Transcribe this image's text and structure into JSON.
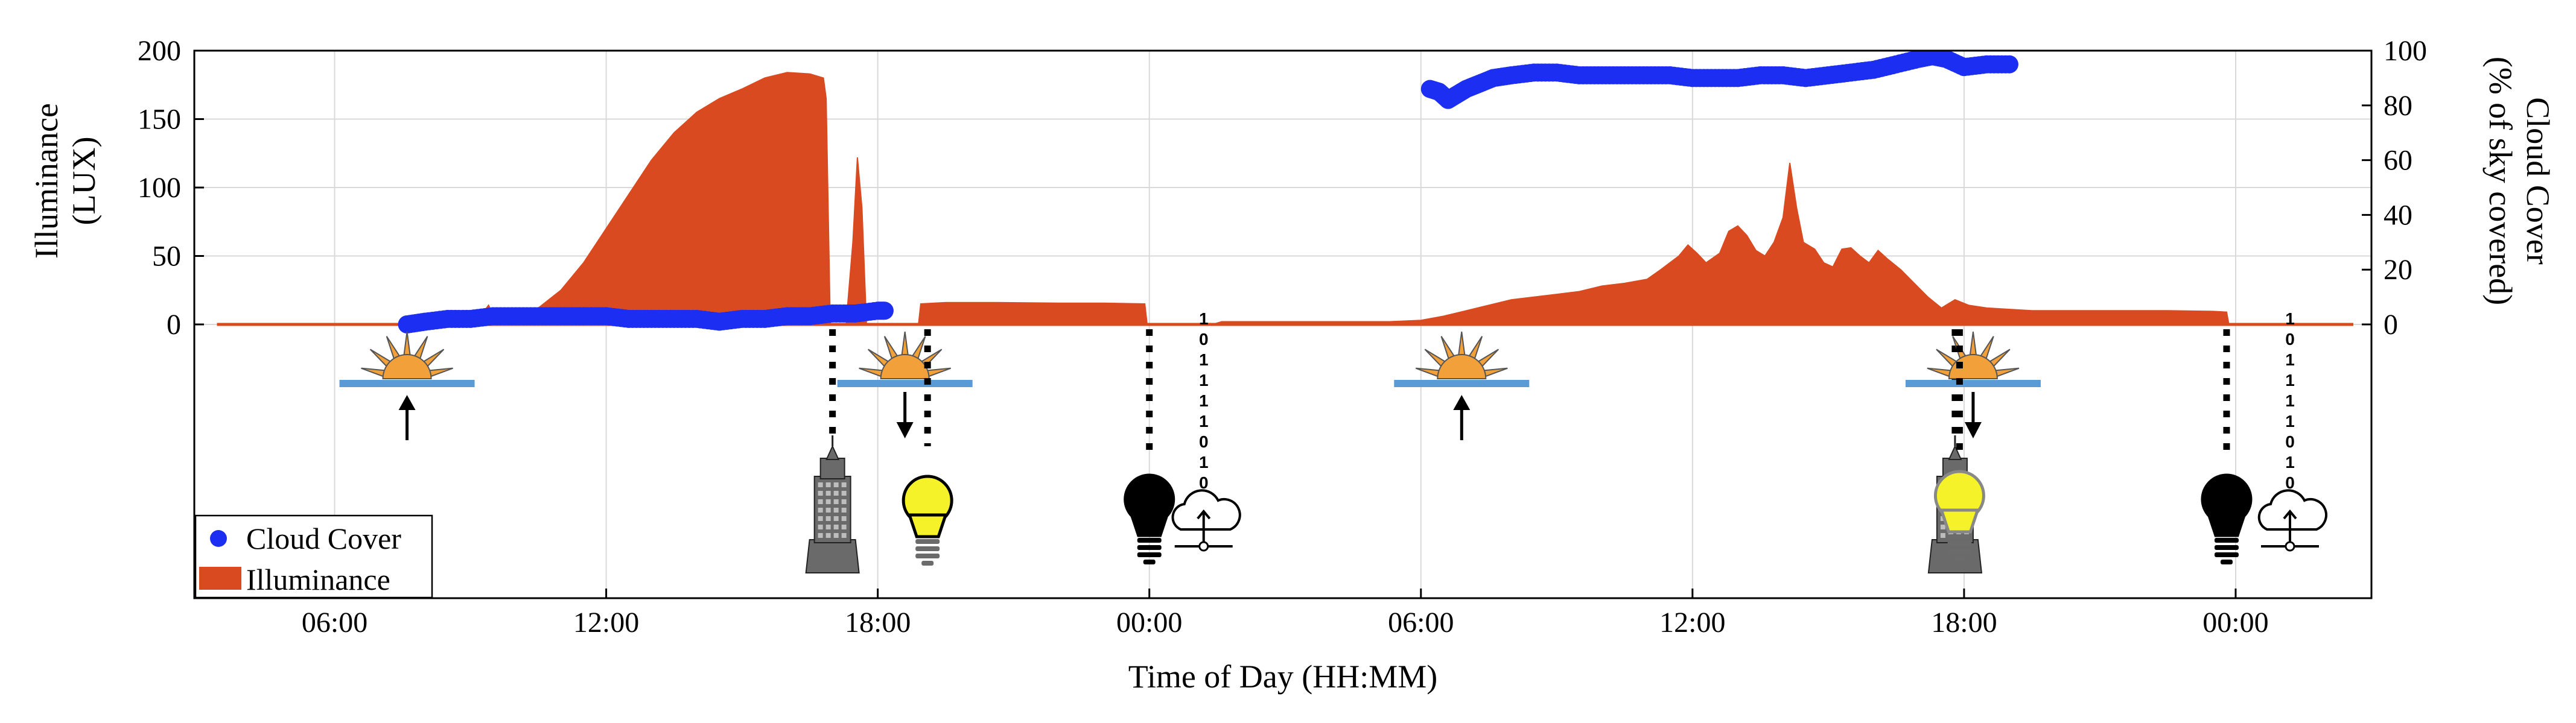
{
  "chart_data": {
    "type": "area",
    "title": "",
    "xlabel": "Time of Day (HH:MM)",
    "ylabel_left": [
      "Illuminance",
      "(LUX)"
    ],
    "ylabel_right": [
      "Cloud Cover",
      "(% of sky covered)"
    ],
    "xlim_hours": [
      2.9,
      51.0
    ],
    "x_ticks": [
      {
        "hour": 6,
        "label": "06:00"
      },
      {
        "hour": 12,
        "label": "12:00"
      },
      {
        "hour": 18,
        "label": "18:00"
      },
      {
        "hour": 24,
        "label": "00:00"
      },
      {
        "hour": 30,
        "label": "06:00"
      },
      {
        "hour": 36,
        "label": "12:00"
      },
      {
        "hour": 42,
        "label": "18:00"
      },
      {
        "hour": 48,
        "label": "00:00"
      }
    ],
    "ylim_left": [
      -200,
      200
    ],
    "y_ticks_left": [
      0,
      50,
      100,
      150,
      200
    ],
    "ylim_right": [
      -100,
      100
    ],
    "y_ticks_right": [
      0,
      20,
      40,
      60,
      80,
      100
    ],
    "grid": true,
    "legend_position": "bottom-left",
    "series": [
      {
        "name": "Illuminance",
        "axis": "left",
        "style": "area",
        "color": "#d94a21",
        "points": [
          [
            3.4,
            0
          ],
          [
            7.4,
            0
          ],
          [
            8.2,
            1
          ],
          [
            8.8,
            2
          ],
          [
            9.2,
            5
          ],
          [
            9.4,
            14
          ],
          [
            9.55,
            4
          ],
          [
            10.0,
            6
          ],
          [
            10.5,
            12
          ],
          [
            11.0,
            25
          ],
          [
            11.5,
            45
          ],
          [
            12.0,
            70
          ],
          [
            12.5,
            95
          ],
          [
            13.0,
            120
          ],
          [
            13.5,
            140
          ],
          [
            14.0,
            155
          ],
          [
            14.5,
            165
          ],
          [
            15.0,
            172
          ],
          [
            15.5,
            180
          ],
          [
            16.0,
            184
          ],
          [
            16.5,
            183
          ],
          [
            16.8,
            180
          ],
          [
            16.86,
            165
          ],
          [
            16.95,
            0
          ],
          [
            17.3,
            0
          ],
          [
            17.45,
            60
          ],
          [
            17.55,
            122
          ],
          [
            17.65,
            85
          ],
          [
            17.75,
            0
          ],
          [
            18.9,
            0
          ],
          [
            18.95,
            15
          ],
          [
            19.5,
            16
          ],
          [
            20.5,
            16
          ],
          [
            22.0,
            15.5
          ],
          [
            23.0,
            15.5
          ],
          [
            23.9,
            15
          ],
          [
            23.95,
            0
          ],
          [
            25.0,
            0
          ],
          [
            25.4,
            0
          ],
          [
            25.6,
            2
          ],
          [
            29.3,
            2
          ],
          [
            30.0,
            3
          ],
          [
            30.5,
            6
          ],
          [
            31.0,
            10
          ],
          [
            31.5,
            14
          ],
          [
            32.0,
            18
          ],
          [
            32.5,
            20
          ],
          [
            33.0,
            22
          ],
          [
            33.5,
            24
          ],
          [
            34.0,
            28
          ],
          [
            34.5,
            30
          ],
          [
            35.0,
            33
          ],
          [
            35.3,
            40
          ],
          [
            35.7,
            50
          ],
          [
            35.9,
            58
          ],
          [
            36.1,
            52
          ],
          [
            36.3,
            45
          ],
          [
            36.6,
            52
          ],
          [
            36.8,
            68
          ],
          [
            37.0,
            72
          ],
          [
            37.2,
            65
          ],
          [
            37.4,
            54
          ],
          [
            37.6,
            50
          ],
          [
            37.8,
            60
          ],
          [
            38.0,
            78
          ],
          [
            38.15,
            118
          ],
          [
            38.3,
            85
          ],
          [
            38.45,
            60
          ],
          [
            38.7,
            55
          ],
          [
            38.9,
            45
          ],
          [
            39.1,
            42
          ],
          [
            39.3,
            55
          ],
          [
            39.5,
            56
          ],
          [
            39.7,
            50
          ],
          [
            39.9,
            45
          ],
          [
            40.1,
            54
          ],
          [
            40.3,
            48
          ],
          [
            40.6,
            40
          ],
          [
            40.9,
            30
          ],
          [
            41.2,
            20
          ],
          [
            41.5,
            12
          ],
          [
            41.8,
            18
          ],
          [
            42.1,
            14
          ],
          [
            42.5,
            12
          ],
          [
            43.5,
            10
          ],
          [
            45.0,
            10
          ],
          [
            46.5,
            10
          ],
          [
            47.5,
            9.5
          ],
          [
            47.8,
            9
          ],
          [
            47.85,
            0
          ],
          [
            50.6,
            0
          ]
        ]
      },
      {
        "name": "Cloud Cover",
        "axis": "right",
        "style": "points",
        "color": "#1c2ef2",
        "points": [
          [
            7.6,
            0
          ],
          [
            8.0,
            1
          ],
          [
            8.5,
            2
          ],
          [
            9.0,
            2
          ],
          [
            9.5,
            3
          ],
          [
            10.0,
            3
          ],
          [
            10.5,
            3
          ],
          [
            11.0,
            3
          ],
          [
            11.5,
            3
          ],
          [
            12.0,
            3
          ],
          [
            12.5,
            2
          ],
          [
            13.0,
            2
          ],
          [
            13.5,
            2
          ],
          [
            14.0,
            2
          ],
          [
            14.5,
            1
          ],
          [
            15.0,
            2
          ],
          [
            15.5,
            2
          ],
          [
            16.0,
            3
          ],
          [
            16.5,
            3
          ],
          [
            17.0,
            4
          ],
          [
            17.5,
            4
          ],
          [
            18.0,
            5
          ],
          [
            18.15,
            5
          ],
          [
            30.2,
            86
          ],
          [
            30.4,
            85
          ],
          [
            30.6,
            82
          ],
          [
            30.8,
            84
          ],
          [
            31.0,
            86
          ],
          [
            31.3,
            88
          ],
          [
            31.6,
            90
          ],
          [
            32.0,
            91
          ],
          [
            32.5,
            92
          ],
          [
            33.0,
            92
          ],
          [
            33.5,
            91
          ],
          [
            34.0,
            91
          ],
          [
            34.5,
            91
          ],
          [
            35.0,
            91
          ],
          [
            35.5,
            91
          ],
          [
            36.0,
            90
          ],
          [
            36.5,
            90
          ],
          [
            37.0,
            90
          ],
          [
            37.5,
            91
          ],
          [
            38.0,
            91
          ],
          [
            38.5,
            90
          ],
          [
            39.0,
            91
          ],
          [
            39.5,
            92
          ],
          [
            40.0,
            93
          ],
          [
            40.5,
            95
          ],
          [
            41.0,
            97
          ],
          [
            41.3,
            98
          ],
          [
            41.6,
            97
          ],
          [
            42.0,
            94
          ],
          [
            42.5,
            95
          ],
          [
            43.0,
            95
          ]
        ]
      }
    ]
  },
  "legend": {
    "cloud_cover": "Cloud Cover",
    "illuminance": "Illuminance"
  },
  "annotations": {
    "sunrise_hours": [
      7.6,
      30.9
    ],
    "sunset_hours": [
      18.6,
      42.2
    ],
    "building_hours": [
      17.0,
      41.8
    ],
    "lamp_on_hours": [
      19.1
    ],
    "lamp_dual_hours": [
      41.9
    ],
    "lamp_off_hours": [
      24.0,
      47.8
    ],
    "cloud_upload_hours": [
      25.2,
      49.2
    ],
    "bit_sequences": [
      {
        "hour": 25.2,
        "bits": [
          "1",
          "0",
          "1",
          "1",
          "1",
          "1",
          "0",
          "1",
          "0"
        ]
      },
      {
        "hour": 49.2,
        "bits": [
          "1",
          "0",
          "1",
          "1",
          "1",
          "1",
          "0",
          "1",
          "0"
        ]
      }
    ],
    "colors": {
      "sun": "#f2a03a",
      "horizon": "#5b9bd5",
      "lamp_on": "#f5f22a",
      "lamp_off": "#000000",
      "building": "#6a6a6a"
    },
    "icons": [
      "sunrise-icon",
      "sunset-icon",
      "skyscraper-icon",
      "lightbulb-on-icon",
      "lightbulb-off-icon",
      "cloud-upload-icon"
    ]
  }
}
